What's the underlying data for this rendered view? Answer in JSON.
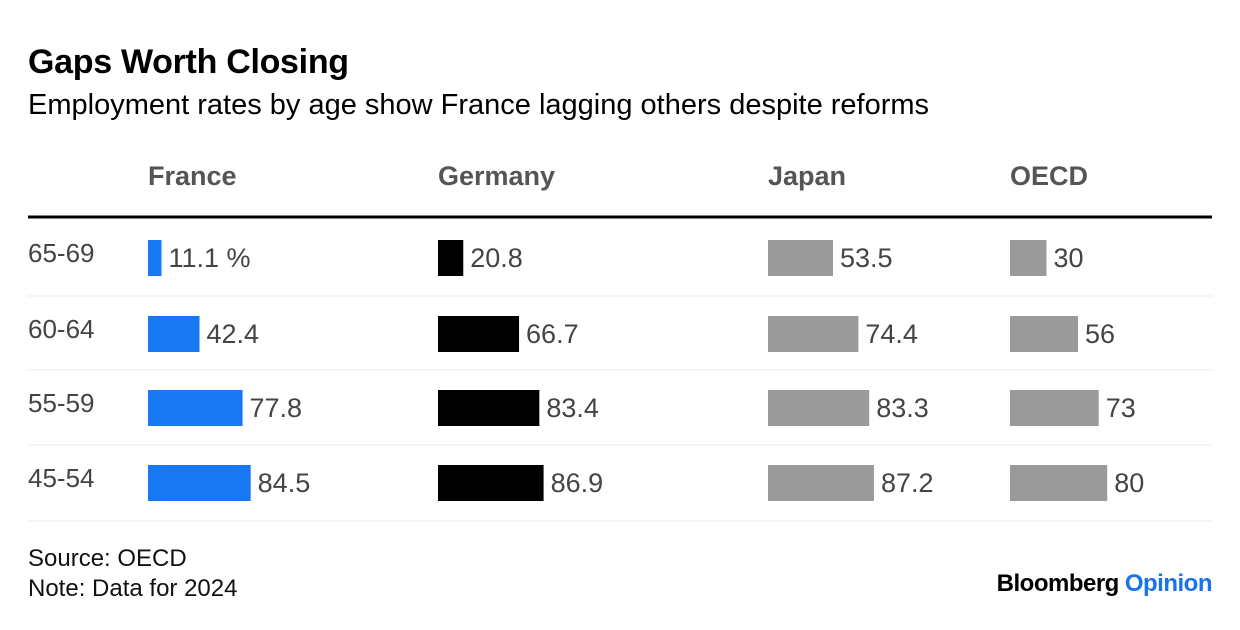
{
  "chart_data": {
    "type": "bar",
    "title": "Gaps Worth Closing",
    "subtitle": "Employment rates by age show France lagging others despite reforms",
    "categories": [
      "65-69",
      "60-64",
      "55-59",
      "45-54"
    ],
    "series": [
      {
        "name": "France",
        "values": [
          11.1,
          42.4,
          77.8,
          84.5
        ],
        "labels": [
          "11.1 %",
          "42.4",
          "77.8",
          "84.5"
        ],
        "color": "#1877f2"
      },
      {
        "name": "Germany",
        "values": [
          20.8,
          66.7,
          83.4,
          86.9
        ],
        "labels": [
          "20.8",
          "66.7",
          "83.4",
          "86.9"
        ],
        "color": "#000000"
      },
      {
        "name": "Japan",
        "values": [
          53.5,
          74.4,
          83.3,
          87.2
        ],
        "labels": [
          "53.5",
          "74.4",
          "83.3",
          "87.2"
        ],
        "color": "#9a9a9a"
      },
      {
        "name": "OECD",
        "values": [
          30,
          56,
          73,
          80
        ],
        "labels": [
          "30",
          "56",
          "73",
          "80"
        ],
        "color": "#9a9a9a"
      }
    ],
    "orientation": "horizontal",
    "layout": "small-multiples",
    "grid": false
  },
  "footer": {
    "source": "Source: OECD",
    "note": "Note: Data for 2024"
  },
  "brand": {
    "name": "Bloomberg",
    "suffix": "Opinion",
    "accent_color": "#1a73e8"
  }
}
